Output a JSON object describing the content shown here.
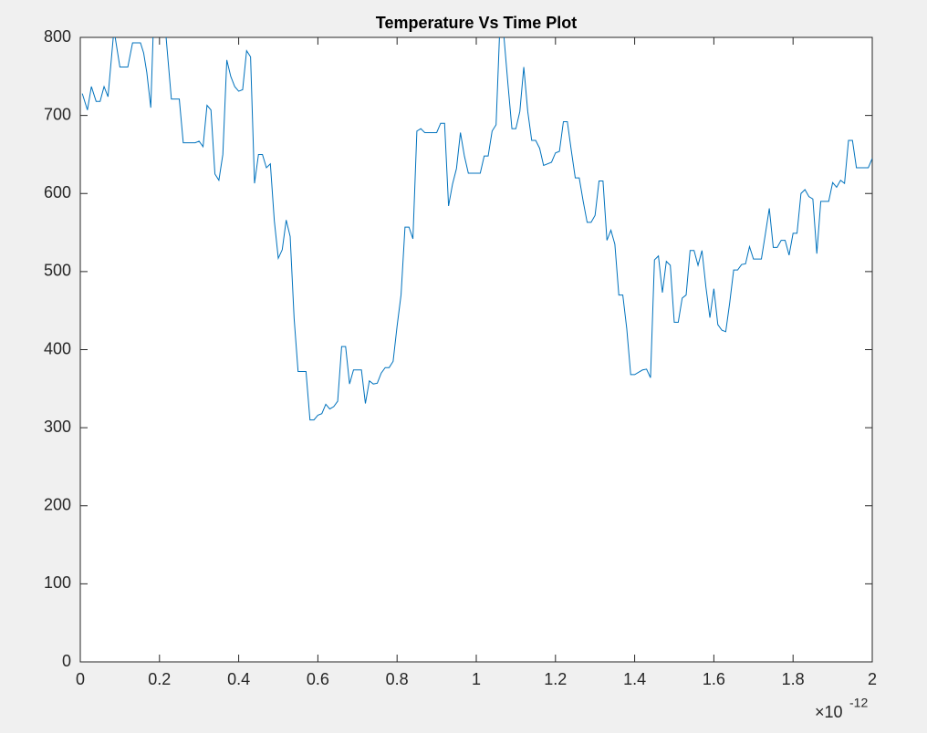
{
  "chart_data": {
    "type": "line",
    "title": "Temperature Vs Time Plot",
    "x_exponent_base": "×10",
    "x_exponent_power": "-12",
    "xlim": [
      0,
      2
    ],
    "xticks": [
      0,
      0.2,
      0.4,
      0.6,
      0.8,
      1,
      1.2,
      1.4,
      1.6,
      1.8,
      2
    ],
    "ylim": [
      0,
      800
    ],
    "yticks": [
      0,
      100,
      200,
      300,
      400,
      500,
      600,
      700,
      800
    ],
    "grid": false,
    "x": [
      0.005,
      0.018,
      0.028,
      0.04,
      0.05,
      0.06,
      0.07,
      0.085,
      0.1,
      0.12,
      0.132,
      0.152,
      0.16,
      0.168,
      0.178,
      0.185,
      0.2,
      0.215,
      0.23,
      0.25,
      0.26,
      0.29,
      0.3,
      0.31,
      0.32,
      0.33,
      0.34,
      0.35,
      0.36,
      0.37,
      0.38,
      0.39,
      0.4,
      0.41,
      0.42,
      0.43,
      0.44,
      0.45,
      0.46,
      0.47,
      0.48,
      0.49,
      0.5,
      0.51,
      0.52,
      0.53,
      0.54,
      0.55,
      0.57,
      0.58,
      0.59,
      0.6,
      0.61,
      0.62,
      0.63,
      0.64,
      0.65,
      0.66,
      0.67,
      0.68,
      0.69,
      0.71,
      0.72,
      0.73,
      0.74,
      0.75,
      0.76,
      0.77,
      0.78,
      0.79,
      0.8,
      0.81,
      0.82,
      0.83,
      0.84,
      0.85,
      0.86,
      0.87,
      0.9,
      0.91,
      0.92,
      0.93,
      0.94,
      0.95,
      0.96,
      0.97,
      0.98,
      1.01,
      1.02,
      1.03,
      1.04,
      1.05,
      1.06,
      1.07,
      1.08,
      1.09,
      1.1,
      1.11,
      1.12,
      1.13,
      1.14,
      1.15,
      1.16,
      1.17,
      1.19,
      1.2,
      1.21,
      1.22,
      1.23,
      1.24,
      1.25,
      1.26,
      1.27,
      1.28,
      1.29,
      1.3,
      1.31,
      1.32,
      1.33,
      1.34,
      1.35,
      1.36,
      1.37,
      1.38,
      1.39,
      1.4,
      1.41,
      1.42,
      1.43,
      1.44,
      1.45,
      1.46,
      1.47,
      1.48,
      1.49,
      1.5,
      1.51,
      1.52,
      1.53,
      1.54,
      1.55,
      1.56,
      1.57,
      1.58,
      1.59,
      1.6,
      1.61,
      1.62,
      1.63,
      1.64,
      1.65,
      1.66,
      1.67,
      1.68,
      1.69,
      1.7,
      1.72,
      1.73,
      1.74,
      1.75,
      1.76,
      1.77,
      1.78,
      1.79,
      1.8,
      1.81,
      1.82,
      1.83,
      1.84,
      1.85,
      1.86,
      1.87,
      1.89,
      1.9,
      1.91,
      1.92,
      1.93,
      1.94,
      1.95,
      1.96,
      1.99,
      2.0
    ],
    "series": [
      {
        "color": "#0072bd",
        "values": [
          728,
          707,
          737,
          718,
          718,
          737,
          724,
          810,
          762,
          762,
          793,
          793,
          780,
          755,
          710,
          820,
          820,
          810,
          721,
          721,
          665,
          665,
          667,
          660,
          713,
          707,
          625,
          617,
          650,
          771,
          750,
          737,
          731,
          733,
          783,
          775,
          613,
          650,
          650,
          633,
          638,
          565,
          517,
          528,
          566,
          545,
          440,
          372,
          372,
          310,
          310,
          316,
          318,
          330,
          324,
          327,
          334,
          404,
          404,
          356,
          374,
          374,
          331,
          360,
          356,
          357,
          370,
          377,
          377,
          385,
          430,
          470,
          557,
          557,
          542,
          680,
          683,
          678,
          678,
          690,
          690,
          584,
          612,
          632,
          678,
          648,
          626,
          626,
          648,
          648,
          680,
          688,
          820,
          800,
          740,
          683,
          683,
          705,
          762,
          705,
          668,
          668,
          658,
          636,
          640,
          652,
          654,
          692,
          692,
          655,
          620,
          620,
          590,
          563,
          563,
          572,
          616,
          616,
          540,
          553,
          535,
          470,
          470,
          427,
          368,
          368,
          371,
          374,
          375,
          364,
          515,
          520,
          473,
          513,
          508,
          435,
          435,
          466,
          470,
          527,
          527,
          508,
          527,
          480,
          441,
          478,
          432,
          425,
          423,
          460,
          502,
          502,
          509,
          510,
          532,
          516,
          516,
          548,
          581,
          531,
          531,
          540,
          540,
          521,
          549,
          549,
          600,
          605,
          596,
          593,
          523,
          590,
          590,
          614,
          608,
          617,
          613,
          668,
          668,
          633,
          633,
          645
        ]
      }
    ]
  }
}
